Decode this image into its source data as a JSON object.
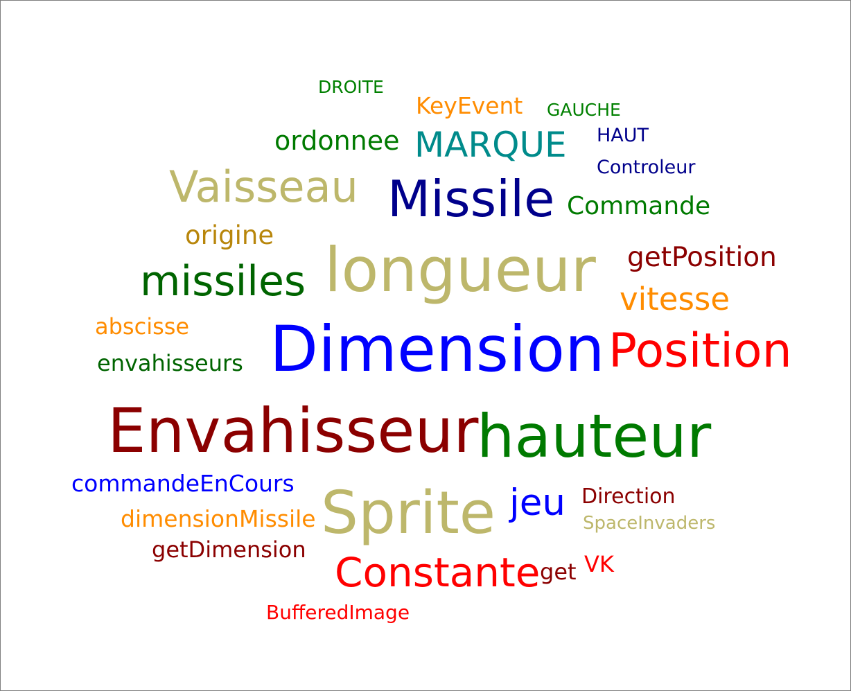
{
  "palette": {
    "dark_green": "#007a00",
    "green": "#008000",
    "orange": "#ff8c00",
    "teal": "#008b8b",
    "navy": "#00008b",
    "khaki": "#bdb76b",
    "goldenrod": "#b8860b",
    "dark_red": "#8b0000",
    "blue": "#0000ff",
    "red": "#ff0000"
  },
  "words": [
    {
      "text": "DROITE",
      "color": "#008000"
    },
    {
      "text": "KeyEvent",
      "color": "#ff8c00"
    },
    {
      "text": "GAUCHE",
      "color": "#008000"
    },
    {
      "text": "ordonnee",
      "color": "#007a00"
    },
    {
      "text": "MARQUE",
      "color": "#008b8b"
    },
    {
      "text": "HAUT",
      "color": "#00008b"
    },
    {
      "text": "Controleur",
      "color": "#00008b"
    },
    {
      "text": "Vaisseau",
      "color": "#bdb76b"
    },
    {
      "text": "Missile",
      "color": "#00008b"
    },
    {
      "text": "Commande",
      "color": "#007a00"
    },
    {
      "text": "origine",
      "color": "#b8860b"
    },
    {
      "text": "longueur",
      "color": "#bdb76b"
    },
    {
      "text": "getPosition",
      "color": "#8b0000"
    },
    {
      "text": "missiles",
      "color": "#006400"
    },
    {
      "text": "vitesse",
      "color": "#ff8c00"
    },
    {
      "text": "abscisse",
      "color": "#ff8c00"
    },
    {
      "text": "Dimension",
      "color": "#0000ff"
    },
    {
      "text": "Position",
      "color": "#ff0000"
    },
    {
      "text": "envahisseurs",
      "color": "#006400"
    },
    {
      "text": "Envahisseur",
      "color": "#8b0000"
    },
    {
      "text": "hauteur",
      "color": "#007a00"
    },
    {
      "text": "commandeEnCours",
      "color": "#0000ff"
    },
    {
      "text": "Sprite",
      "color": "#bdb76b"
    },
    {
      "text": "jeu",
      "color": "#0000ff"
    },
    {
      "text": "Direction",
      "color": "#8b0000"
    },
    {
      "text": "dimensionMissile",
      "color": "#ff8c00"
    },
    {
      "text": "SpaceInvaders",
      "color": "#bdb76b"
    },
    {
      "text": "getDimension",
      "color": "#8b0000"
    },
    {
      "text": "Constante",
      "color": "#ff0000"
    },
    {
      "text": "get",
      "color": "#8b0000"
    },
    {
      "text": "VK",
      "color": "#ff0000"
    },
    {
      "text": "BufferedImage",
      "color": "#ff0000"
    }
  ]
}
